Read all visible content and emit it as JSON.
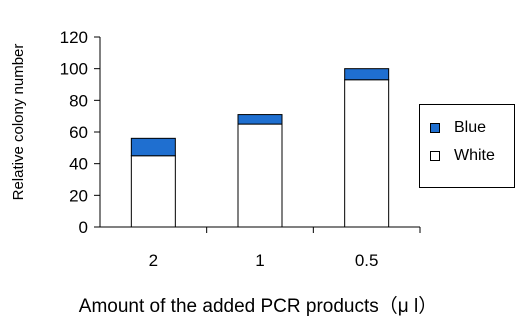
{
  "chart_data": {
    "type": "bar",
    "stacked": true,
    "categories": [
      "2",
      "1",
      "0.5"
    ],
    "series": [
      {
        "name": "White",
        "values": [
          45,
          65,
          93
        ],
        "color": "#ffffff"
      },
      {
        "name": "Blue",
        "values": [
          11,
          6,
          7
        ],
        "color": "#1f6fd0"
      }
    ],
    "xlabel": "Amount of the added PCR products（μ l）",
    "ylabel": "Relative colony number",
    "ylim": [
      0,
      120
    ],
    "yticks": [
      "0",
      "20",
      "40",
      "60",
      "80",
      "100",
      "120"
    ],
    "legend_position": "right",
    "legend": [
      {
        "label": "Blue",
        "color": "#1f6fd0"
      },
      {
        "label": "White",
        "color": "#ffffff"
      }
    ],
    "grid": false
  }
}
